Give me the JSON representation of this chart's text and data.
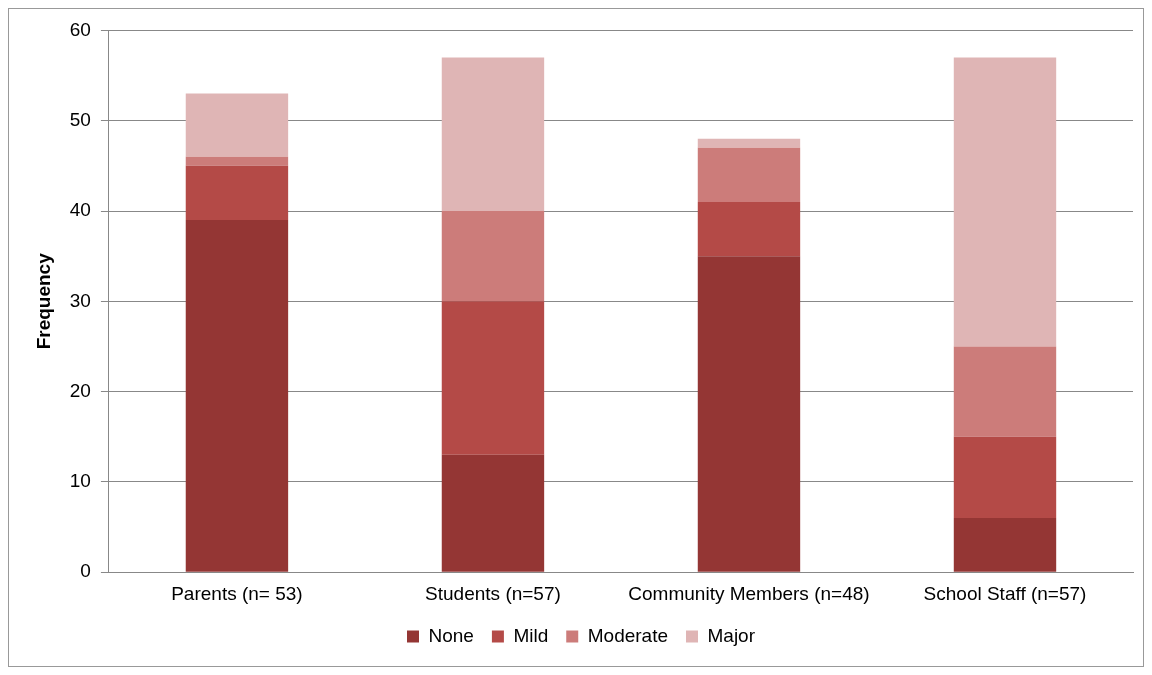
{
  "chart_data": {
    "type": "bar",
    "stacked": true,
    "ylabel": "Frequency",
    "categories": [
      "Parents (n= 53)",
      "Students (n=57)",
      "Community Members (n=48)",
      "School Staff (n=57)"
    ],
    "series": [
      {
        "name": "None",
        "color": "#943634",
        "values": [
          39,
          13,
          35,
          6
        ]
      },
      {
        "name": "Mild",
        "color": "#b44a47",
        "values": [
          6,
          17,
          6,
          9
        ]
      },
      {
        "name": "Moderate",
        "color": "#cc7c7a",
        "values": [
          1,
          10,
          6,
          10
        ]
      },
      {
        "name": "Major",
        "color": "#dfb5b5",
        "values": [
          7,
          17,
          1,
          32
        ]
      }
    ],
    "ylim": [
      0,
      60
    ],
    "yticks": [
      0,
      10,
      20,
      30,
      40,
      50,
      60
    ],
    "grid": "y",
    "legend": "bottom"
  }
}
